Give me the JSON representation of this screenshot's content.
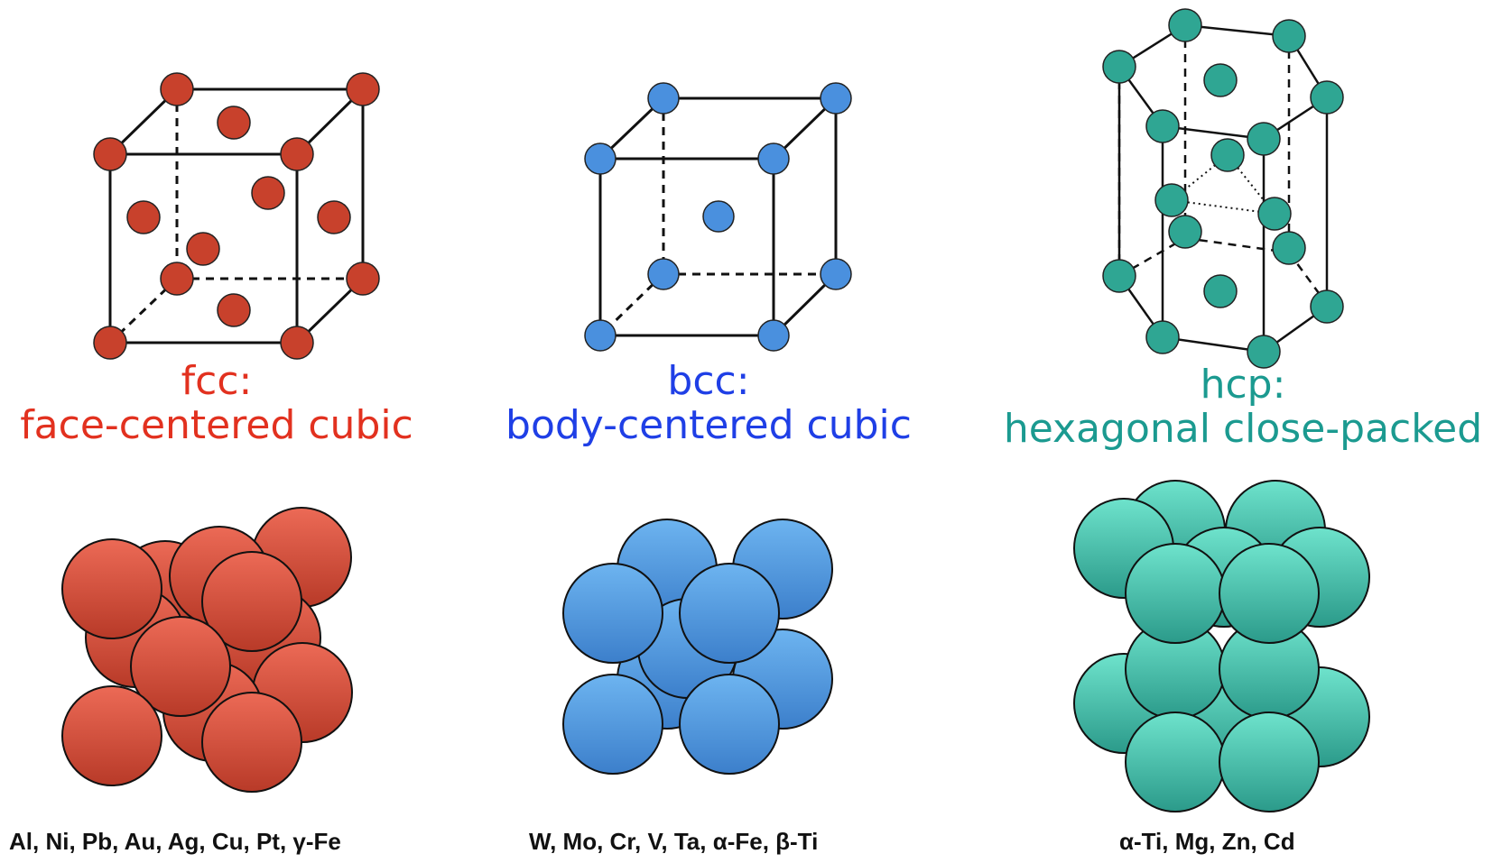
{
  "colors": {
    "fcc": "#e2311f",
    "bcc": "#1f3fe6",
    "hcp": "#1b9a90",
    "fcc_sphere_light": "#ec6a56",
    "fcc_sphere_dark": "#b83a28",
    "bcc_sphere_light": "#6db4f0",
    "bcc_sphere_dark": "#3c7fcb",
    "hcp_sphere_light": "#6ee3cc",
    "hcp_sphere_dark": "#2b9a8a"
  },
  "structures": [
    {
      "id": "fcc",
      "abbr": "fcc:",
      "name": "face-centered cubic",
      "metals": "Al, Ni, Pb, Au, Ag, Cu, Pt, γ-Fe"
    },
    {
      "id": "bcc",
      "abbr": "bcc:",
      "name": "body-centered cubic",
      "metals": "W, Mo, Cr, V, Ta, α-Fe, β-Ti"
    },
    {
      "id": "hcp",
      "abbr": "hcp:",
      "name": "hexagonal close-packed",
      "metals": "α-Ti, Mg, Zn, Cd"
    }
  ]
}
